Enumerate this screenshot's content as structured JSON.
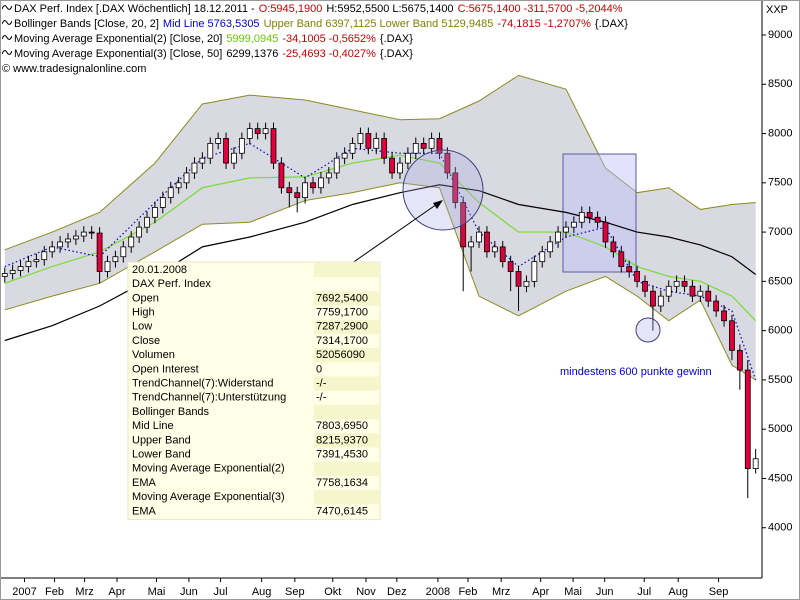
{
  "chart_data": {
    "type": "candlestick",
    "header": [
      [
        {
          "text": "DAX Perf. Index [.DAX Wöchentlich] 18.12.2011 -",
          "color": "#000000"
        },
        {
          "text": "O:5945,1900",
          "color": "#cc0000"
        },
        {
          "text": "H:5952,5500 L:5675,1400",
          "color": "#000000"
        },
        {
          "text": "C:5675,1400 -311,5700 -5,2044%",
          "color": "#cc0000"
        }
      ],
      [
        {
          "text": "Bollinger Bands [Close, 20, 2]",
          "color": "#000000"
        },
        {
          "text": "Mid Line 5763,5305",
          "color": "#0000cc"
        },
        {
          "text": "Upper Band 6397,1125 Lower Band 5129,9485",
          "color": "#808000"
        },
        {
          "text": "-74,1815 -1,2707%",
          "color": "#cc0000"
        },
        {
          "text": "{.DAX}",
          "color": "#000000"
        }
      ],
      [
        {
          "text": "Moving Average Exponential(2) [Close, 20]",
          "color": "#000000"
        },
        {
          "text": "5999,0945",
          "color": "#66cc00"
        },
        {
          "text": "-34,1005 -0,5652%",
          "color": "#cc0000"
        },
        {
          "text": "{.DAX}",
          "color": "#000000"
        }
      ],
      [
        {
          "text": "Moving Average Exponential(3) [Close, 50]",
          "color": "#000000"
        },
        {
          "text": "6299,1376",
          "color": "#000000"
        },
        {
          "text": "-25,4693 -0,4027%",
          "color": "#cc0000"
        },
        {
          "text": "{.DAX}",
          "color": "#000000"
        }
      ]
    ],
    "copyright": "© www.tradesignalonline.com",
    "y_axis_label": "XXP",
    "annotation": {
      "text": "mindestens 600 punkte gewinn",
      "color": "#0000cc"
    },
    "up_color": "#ffffff",
    "down_color": "#e0003c",
    "x": [
      0,
      1,
      2,
      3,
      4,
      5,
      6,
      7,
      8,
      9,
      10,
      11,
      12,
      13,
      14,
      15,
      16,
      17,
      18,
      19,
      20,
      21,
      22,
      23,
      24,
      25,
      26,
      27,
      28,
      29,
      30,
      31,
      32,
      33,
      34,
      35,
      36,
      37,
      38,
      39,
      40,
      41,
      42,
      43,
      44,
      45,
      46,
      47,
      48,
      49,
      50,
      51,
      52,
      53,
      54,
      55,
      56,
      57,
      58,
      59,
      60,
      61,
      62,
      63,
      64,
      65,
      66,
      67,
      68,
      69,
      70,
      71,
      72,
      73,
      74,
      75,
      76,
      77,
      78,
      79,
      80,
      81,
      82,
      83,
      84,
      85,
      86,
      87,
      88,
      89,
      90,
      91,
      92,
      93,
      94,
      95
    ],
    "open": [
      6550,
      6580,
      6610,
      6650,
      6700,
      6720,
      6800,
      6850,
      6900,
      6930,
      6960,
      7000,
      6990,
      6600,
      6700,
      6750,
      6850,
      6950,
      7050,
      7150,
      7250,
      7350,
      7450,
      7500,
      7600,
      7700,
      7750,
      7900,
      7950,
      7700,
      7800,
      7950,
      8050,
      8000,
      8050,
      7700,
      7450,
      7400,
      7350,
      7500,
      7450,
      7550,
      7600,
      7750,
      7800,
      7900,
      8000,
      7850,
      7950,
      7750,
      7600,
      7700,
      7800,
      7900,
      7850,
      7950,
      7800,
      7600,
      7300,
      6850,
      6900,
      7000,
      6800,
      6850,
      6700,
      6600,
      6450,
      6500,
      6700,
      6800,
      6900,
      7000,
      7050,
      7100,
      7200,
      7150,
      7100,
      6900,
      6800,
      6650,
      6600,
      6500,
      6400,
      6250,
      6350,
      6450,
      6500,
      6450,
      6350,
      6400,
      6300,
      6200,
      6100,
      5800,
      5600,
      4600
    ],
    "high": [
      6640,
      6670,
      6710,
      6760,
      6780,
      6860,
      6910,
      6960,
      6990,
      7020,
      7060,
      7060,
      7050,
      6760,
      6810,
      6910,
      7010,
      7110,
      7210,
      7310,
      7410,
      7510,
      7560,
      7660,
      7760,
      7810,
      7960,
      8010,
      8010,
      7860,
      8010,
      8110,
      8110,
      8110,
      8110,
      7760,
      7510,
      7460,
      7560,
      7560,
      7610,
      7660,
      7810,
      7860,
      7960,
      8060,
      8060,
      8010,
      8010,
      7810,
      7760,
      7860,
      7960,
      7960,
      8010,
      8010,
      7860,
      7660,
      7360,
      6960,
      7060,
      7060,
      6910,
      6910,
      6760,
      6660,
      6560,
      6760,
      6860,
      6960,
      7060,
      7110,
      7160,
      7260,
      7260,
      7210,
      7160,
      6960,
      6860,
      6710,
      6660,
      6560,
      6460,
      6410,
      6510,
      6560,
      6560,
      6510,
      6460,
      6460,
      6360,
      6260,
      6160,
      5860,
      5700,
      4800
    ],
    "low": [
      6490,
      6520,
      6550,
      6590,
      6640,
      6660,
      6740,
      6790,
      6840,
      6870,
      6900,
      6930,
      6480,
      6540,
      6640,
      6690,
      6790,
      6890,
      6990,
      7090,
      7190,
      7290,
      7390,
      7440,
      7540,
      7640,
      7690,
      7840,
      7640,
      7640,
      7740,
      7890,
      7940,
      7940,
      7640,
      7390,
      7250,
      7200,
      7290,
      7390,
      7390,
      7490,
      7540,
      7690,
      7740,
      7840,
      7790,
      7790,
      7690,
      7540,
      7540,
      7640,
      7740,
      7790,
      7790,
      7740,
      7540,
      7240,
      6400,
      6600,
      6840,
      6740,
      6740,
      6640,
      6400,
      6200,
      6390,
      6440,
      6640,
      6740,
      6840,
      6940,
      6990,
      7040,
      7090,
      7040,
      6840,
      6740,
      6590,
      6540,
      6440,
      6340,
      6000,
      6190,
      6290,
      6390,
      6390,
      6290,
      6290,
      6240,
      6140,
      6040,
      5700,
      5400,
      4300,
      4550
    ],
    "close": [
      6580,
      6610,
      6650,
      6700,
      6720,
      6800,
      6850,
      6900,
      6930,
      6960,
      7000,
      6990,
      6600,
      6700,
      6750,
      6850,
      6950,
      7050,
      7150,
      7250,
      7350,
      7450,
      7500,
      7600,
      7700,
      7750,
      7900,
      7950,
      7700,
      7800,
      7950,
      8050,
      8000,
      8050,
      7700,
      7450,
      7400,
      7350,
      7500,
      7450,
      7550,
      7600,
      7750,
      7800,
      7900,
      8000,
      7850,
      7950,
      7750,
      7600,
      7700,
      7800,
      7900,
      7850,
      7950,
      7800,
      7600,
      7300,
      6850,
      6900,
      7000,
      6800,
      6850,
      6700,
      6600,
      6450,
      6500,
      6700,
      6800,
      6900,
      7000,
      7050,
      7100,
      7200,
      7150,
      7100,
      6900,
      6800,
      6650,
      6600,
      6500,
      6400,
      6250,
      6350,
      6450,
      6500,
      6450,
      6350,
      6400,
      6300,
      6200,
      6100,
      5800,
      5600,
      4600,
      4700
    ],
    "indicator_x": [
      0,
      6,
      12,
      19,
      25,
      31,
      38,
      44,
      50,
      55,
      60,
      65,
      71,
      76,
      80,
      84,
      88,
      92,
      95
    ],
    "band": {
      "fill": "#d9d9e1",
      "color": "#8b8b1e",
      "upper": [
        6820,
        7000,
        7200,
        7700,
        8300,
        8390,
        8340,
        8240,
        8140,
        8150,
        8330,
        8590,
        8450,
        7650,
        7400,
        7450,
        7230,
        7280,
        7300
      ],
      "lower": [
        6210,
        6350,
        6480,
        6800,
        7080,
        7100,
        7320,
        7400,
        7500,
        7450,
        6350,
        6150,
        6400,
        6550,
        6350,
        6100,
        6310,
        5650,
        5500
      ]
    },
    "lines": [
      {
        "color": "#77dd33",
        "style": "solid",
        "values": [
          6480,
          6650,
          6800,
          7100,
          7450,
          7550,
          7560,
          7700,
          7780,
          7700,
          7300,
          7000,
          7000,
          6850,
          6650,
          6550,
          6500,
          6350,
          6100
        ]
      },
      {
        "color": "#000000",
        "style": "solid",
        "values": [
          5900,
          6050,
          6250,
          6550,
          6850,
          6950,
          7100,
          7280,
          7400,
          7480,
          7420,
          7280,
          7200,
          7100,
          7000,
          6950,
          6870,
          6750,
          6570
        ]
      },
      {
        "color": "#0000cc",
        "style": "dotted",
        "values": [
          6650,
          6850,
          6750,
          7300,
          7750,
          7900,
          7550,
          7850,
          7800,
          7800,
          7000,
          6650,
          6950,
          7050,
          6500,
          6400,
          6350,
          6200,
          5500
        ]
      }
    ],
    "xlim": [
      -0.6,
      95.8
    ],
    "ylim": [
      3490,
      9355
    ],
    "xticks": [
      {
        "value": 2.5,
        "label": "2007"
      },
      {
        "value": 6.3,
        "label": "Feb"
      },
      {
        "value": 10.1,
        "label": "Mrz"
      },
      {
        "value": 14.2,
        "label": "Apr"
      },
      {
        "value": 19.2,
        "label": "Mai"
      },
      {
        "value": 23.3,
        "label": "Jun"
      },
      {
        "value": 27.3,
        "label": "Jul"
      },
      {
        "value": 32.5,
        "label": "Aug"
      },
      {
        "value": 36.7,
        "label": "Sep"
      },
      {
        "value": 41.5,
        "label": "Okt"
      },
      {
        "value": 45.7,
        "label": "Nov"
      },
      {
        "value": 49.6,
        "label": "Dez"
      },
      {
        "value": 54.8,
        "label": "2008"
      },
      {
        "value": 58.6,
        "label": "Feb"
      },
      {
        "value": 62.8,
        "label": "Mrz"
      },
      {
        "value": 67.8,
        "label": "Apr"
      },
      {
        "value": 71.9,
        "label": "Mai"
      },
      {
        "value": 75.9,
        "label": "Jun"
      },
      {
        "value": 80.9,
        "label": "Jul"
      },
      {
        "value": 85.2,
        "label": "Aug"
      },
      {
        "value": 90.3,
        "label": "Sep"
      }
    ],
    "yticks": [
      4000,
      4500,
      5000,
      5500,
      6000,
      6500,
      7000,
      7500,
      8000,
      8500,
      9000
    ],
    "tooltip": {
      "rows": [
        [
          "20.01.2008"
        ],
        [
          "DAX Perf. Index"
        ],
        [
          "Open",
          "7692,5400"
        ],
        [
          "High",
          "7759,1700"
        ],
        [
          "Low",
          "7287,2900"
        ],
        [
          "Close",
          "7314,1700"
        ],
        [
          "Volumen",
          "52056090"
        ],
        [
          "Open Interest",
          "0"
        ],
        [
          "TrendChannel(7):Widerstand",
          "-/-"
        ],
        [
          "TrendChannel(7):Unterstützung",
          "-/-"
        ],
        [
          "Bollinger Bands"
        ],
        [
          "Mid Line",
          "7803,6950"
        ],
        [
          "Upper Band",
          "8215,9370"
        ],
        [
          "Lower Band",
          "7391,4530"
        ],
        [
          "Moving Average Exponential(2)"
        ],
        [
          "EMA",
          "7758,1634"
        ],
        [
          "Moving Average Exponential(3)"
        ],
        [
          "EMA",
          "7470,6145"
        ]
      ]
    }
  }
}
